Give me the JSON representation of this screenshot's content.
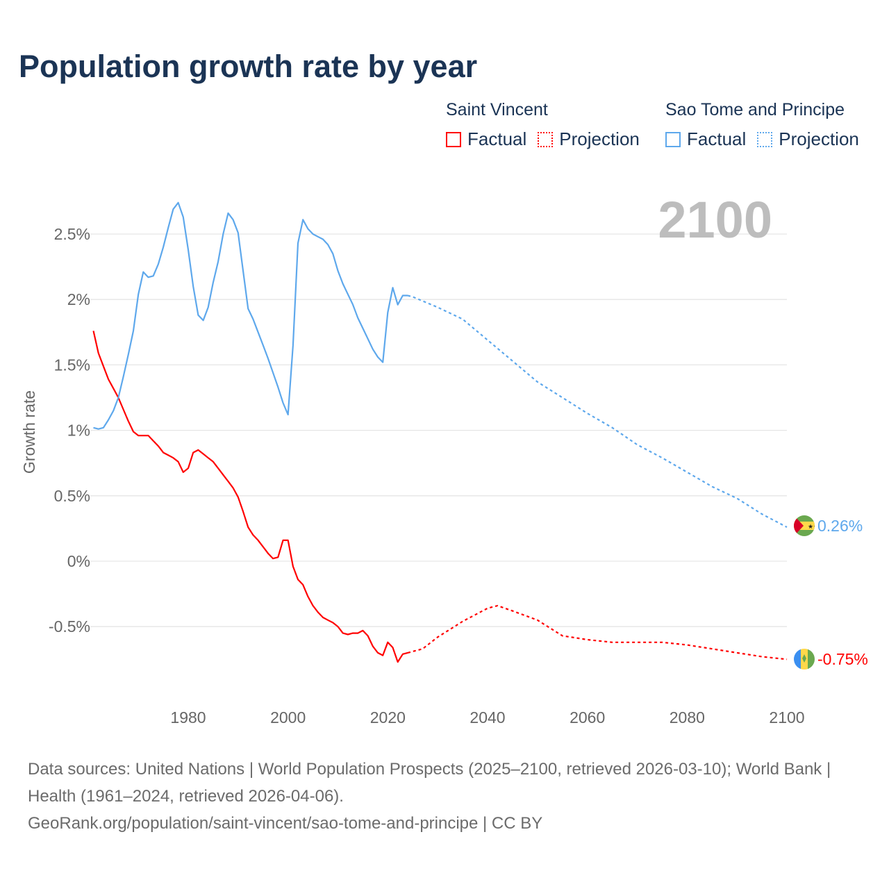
{
  "title": "Population growth rate by year",
  "legend": {
    "groups": [
      {
        "name": "Saint Vincent",
        "color": "#ff0000",
        "factual": "Factual",
        "projection": "Projection"
      },
      {
        "name": "Sao Tome and Principe",
        "color": "#5ea8ec",
        "factual": "Factual",
        "projection": "Projection"
      }
    ]
  },
  "year_display": "2100",
  "footer": {
    "sources": "Data sources: United Nations | World Population Prospects (2025–2100, retrieved 2026-03-10); World Bank | Health (1961–2024, retrieved 2026-04-06).",
    "link": "GeoRank.org/population/saint-vincent/sao-tome-and-principe | CC BY"
  },
  "chart_data": {
    "type": "line",
    "title": "Population growth rate by year",
    "xlabel": "",
    "ylabel": "Growth rate",
    "xlim": [
      1961,
      2100
    ],
    "ylim": [
      -0.9,
      2.8
    ],
    "x_ticks": [
      1980,
      2000,
      2020,
      2040,
      2060,
      2080,
      2100
    ],
    "y_ticks": [
      {
        "value": -0.5,
        "label": "-0.5%"
      },
      {
        "value": 0,
        "label": "0%"
      },
      {
        "value": 0.5,
        "label": "0.5%"
      },
      {
        "value": 1,
        "label": "1%"
      },
      {
        "value": 1.5,
        "label": "1.5%"
      },
      {
        "value": 2,
        "label": "2%"
      },
      {
        "value": 2.5,
        "label": "2.5%"
      }
    ],
    "grid": true,
    "series": [
      {
        "name": "Saint Vincent",
        "color": "#ff0000",
        "end_label": "-0.75%",
        "factual": {
          "x": [
            1961,
            1962,
            1963,
            1964,
            1965,
            1966,
            1967,
            1968,
            1969,
            1970,
            1971,
            1972,
            1973,
            1974,
            1975,
            1976,
            1977,
            1978,
            1979,
            1980,
            1981,
            1982,
            1983,
            1984,
            1985,
            1986,
            1987,
            1988,
            1989,
            1990,
            1991,
            1992,
            1993,
            1994,
            1995,
            1996,
            1997,
            1998,
            1999,
            2000,
            2001,
            2002,
            2003,
            2004,
            2005,
            2006,
            2007,
            2008,
            2009,
            2010,
            2011,
            2012,
            2013,
            2014,
            2015,
            2016,
            2017,
            2018,
            2019,
            2020,
            2021,
            2022,
            2023,
            2024
          ],
          "y": [
            1.76,
            1.59,
            1.49,
            1.39,
            1.32,
            1.25,
            1.16,
            1.07,
            0.99,
            0.96,
            0.96,
            0.96,
            0.92,
            0.88,
            0.83,
            0.81,
            0.79,
            0.76,
            0.68,
            0.71,
            0.83,
            0.85,
            0.82,
            0.79,
            0.76,
            0.71,
            0.66,
            0.61,
            0.56,
            0.49,
            0.38,
            0.26,
            0.2,
            0.16,
            0.11,
            0.06,
            0.02,
            0.03,
            0.16,
            0.16,
            -0.04,
            -0.14,
            -0.18,
            -0.27,
            -0.34,
            -0.39,
            -0.43,
            -0.45,
            -0.47,
            -0.5,
            -0.55,
            -0.56,
            -0.55,
            -0.55,
            -0.53,
            -0.57,
            -0.65,
            -0.7,
            -0.72,
            -0.62,
            -0.66,
            -0.77,
            -0.71,
            -0.7
          ]
        },
        "projection": {
          "x": [
            2024,
            2025,
            2027,
            2030,
            2035,
            2040,
            2042,
            2045,
            2050,
            2055,
            2060,
            2065,
            2070,
            2075,
            2080,
            2085,
            2090,
            2095,
            2100
          ],
          "y": [
            -0.7,
            -0.69,
            -0.67,
            -0.58,
            -0.46,
            -0.36,
            -0.34,
            -0.38,
            -0.45,
            -0.57,
            -0.6,
            -0.62,
            -0.62,
            -0.62,
            -0.64,
            -0.67,
            -0.7,
            -0.73,
            -0.75
          ]
        }
      },
      {
        "name": "Sao Tome and Principe",
        "color": "#5ea8ec",
        "end_label": "0.26%",
        "factual": {
          "x": [
            1961,
            1962,
            1963,
            1964,
            1965,
            1966,
            1967,
            1968,
            1969,
            1970,
            1971,
            1972,
            1973,
            1974,
            1975,
            1976,
            1977,
            1978,
            1979,
            1980,
            1981,
            1982,
            1983,
            1984,
            1985,
            1986,
            1987,
            1988,
            1989,
            1990,
            1991,
            1992,
            1993,
            1994,
            1995,
            1996,
            1997,
            1998,
            1999,
            2000,
            2001,
            2002,
            2003,
            2004,
            2005,
            2006,
            2007,
            2008,
            2009,
            2010,
            2011,
            2012,
            2013,
            2014,
            2015,
            2016,
            2017,
            2018,
            2019,
            2020,
            2021,
            2022,
            2023,
            2024
          ],
          "y": [
            1.02,
            1.01,
            1.02,
            1.08,
            1.15,
            1.25,
            1.41,
            1.58,
            1.76,
            2.04,
            2.21,
            2.17,
            2.18,
            2.27,
            2.4,
            2.55,
            2.69,
            2.74,
            2.63,
            2.38,
            2.1,
            1.88,
            1.84,
            1.94,
            2.13,
            2.29,
            2.5,
            2.66,
            2.61,
            2.51,
            2.22,
            1.93,
            1.85,
            1.75,
            1.65,
            1.55,
            1.44,
            1.33,
            1.21,
            1.12,
            1.65,
            2.43,
            2.61,
            2.54,
            2.5,
            2.48,
            2.46,
            2.42,
            2.35,
            2.22,
            2.12,
            2.04,
            1.96,
            1.86,
            1.78,
            1.7,
            1.62,
            1.56,
            1.52,
            1.9,
            2.09,
            1.96,
            2.03,
            2.03
          ]
        },
        "projection": {
          "x": [
            2024,
            2025,
            2030,
            2035,
            2040,
            2045,
            2050,
            2055,
            2060,
            2065,
            2070,
            2075,
            2080,
            2085,
            2090,
            2095,
            2100
          ],
          "y": [
            2.03,
            2.02,
            1.94,
            1.85,
            1.69,
            1.53,
            1.37,
            1.25,
            1.13,
            1.02,
            0.89,
            0.79,
            0.68,
            0.57,
            0.48,
            0.36,
            0.26
          ]
        }
      }
    ]
  }
}
